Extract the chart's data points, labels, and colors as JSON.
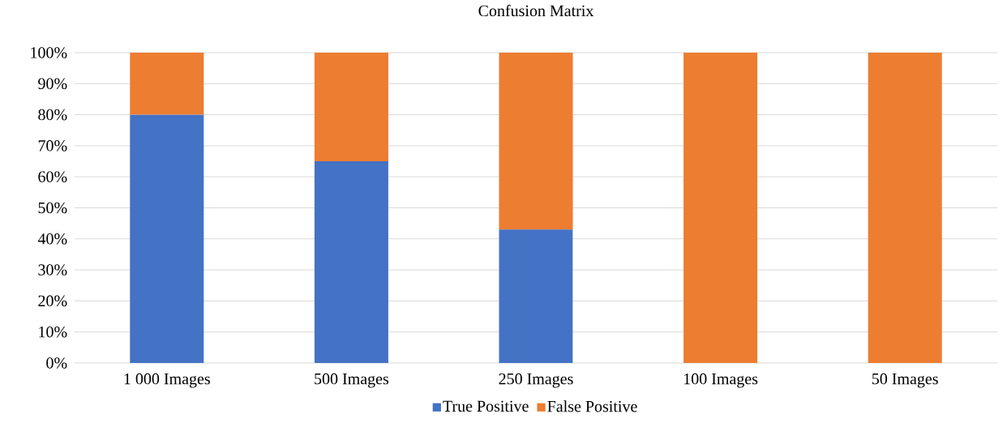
{
  "chart_data": {
    "type": "bar",
    "title": "Confusion Matrix",
    "stacked": true,
    "categories": [
      "1 000 Images",
      "500 Images",
      "250 Images",
      "100 Images",
      "50 Images"
    ],
    "series": [
      {
        "name": "True Positive",
        "color": "#4472c4",
        "values": [
          80,
          65,
          43,
          0,
          0
        ]
      },
      {
        "name": "False Positive",
        "color": "#ed7d31",
        "values": [
          20,
          35,
          57,
          100,
          100
        ]
      }
    ],
    "ylim": [
      0,
      100
    ],
    "yticks": [
      {
        "value": 0,
        "label": "0%"
      },
      {
        "value": 10,
        "label": "10%"
      },
      {
        "value": 20,
        "label": "20%"
      },
      {
        "value": 30,
        "label": "30%"
      },
      {
        "value": 40,
        "label": "40%"
      },
      {
        "value": 50,
        "label": "50%"
      },
      {
        "value": 60,
        "label": "60%"
      },
      {
        "value": 70,
        "label": "70%"
      },
      {
        "value": 80,
        "label": "80%"
      },
      {
        "value": 90,
        "label": "90%"
      },
      {
        "value": 100,
        "label": "100%"
      }
    ],
    "grid": "y",
    "legend": "bottom"
  }
}
